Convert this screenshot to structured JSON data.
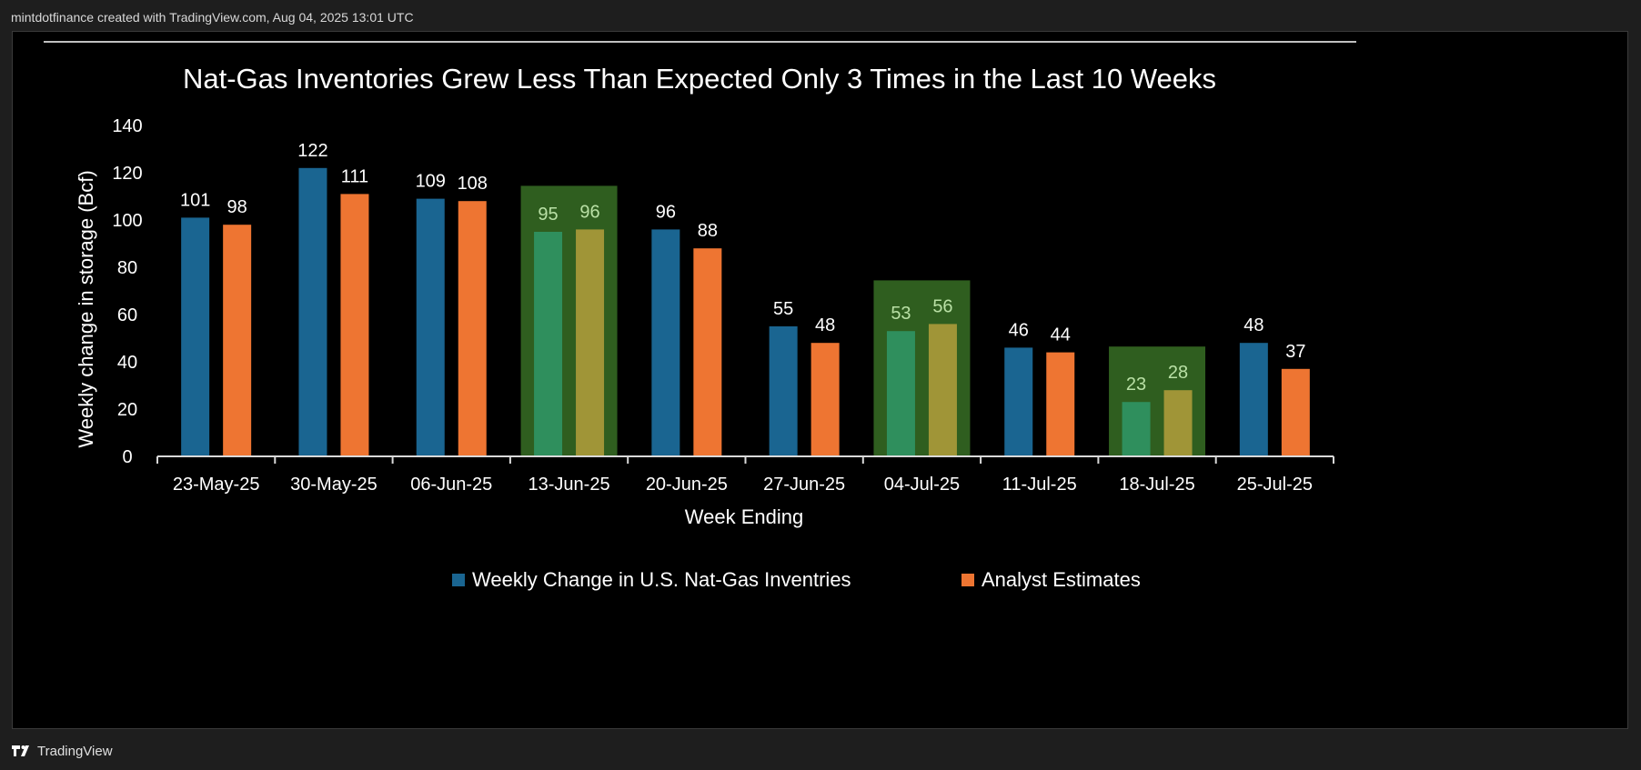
{
  "header": {
    "caption": "mintdotfinance created with TradingView.com, Aug 04, 2025 13:01 UTC"
  },
  "footer": {
    "brand": "TradingView",
    "logo_icon": "tradingview-logo-icon"
  },
  "colors": {
    "actual": "#1a6591",
    "estimate": "#ee7532",
    "highlight_bg": "#2f5e1f",
    "actual_highlight": "#2f8f5d",
    "estimate_highlight": "#a09537",
    "label_highlight": "#b9e0a5"
  },
  "chart_data": {
    "type": "bar",
    "title": "Nat-Gas Inventories Grew Less Than Expected Only 3 Times in the Last 10 Weeks",
    "xlabel": "Week Ending",
    "ylabel": "Weekly change in storage (Bcf)",
    "ylim": [
      0,
      140
    ],
    "yticks": [
      0,
      20,
      40,
      60,
      80,
      100,
      120,
      140
    ],
    "grid": false,
    "legend_position": "bottom",
    "categories": [
      "23-May-25",
      "30-May-25",
      "06-Jun-25",
      "13-Jun-25",
      "20-Jun-25",
      "27-Jun-25",
      "04-Jul-25",
      "11-Jul-25",
      "18-Jul-25",
      "25-Jul-25"
    ],
    "series": [
      {
        "name": "Weekly Change in U.S. Nat-Gas Inventries",
        "values": [
          101,
          122,
          109,
          95,
          96,
          55,
          53,
          46,
          23,
          48
        ]
      },
      {
        "name": "Analyst Estimates",
        "values": [
          98,
          111,
          108,
          96,
          88,
          48,
          56,
          44,
          28,
          37
        ]
      }
    ],
    "highlighted_categories": [
      "13-Jun-25",
      "04-Jul-25",
      "18-Jul-25"
    ]
  }
}
